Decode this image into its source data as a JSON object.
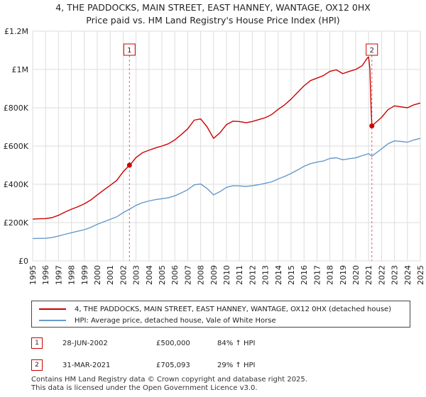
{
  "title_line1": "4, THE PADDOCKS, MAIN STREET, EAST HANNEY, WANTAGE, OX12 0HX",
  "title_line2": "Price paid vs. HM Land Registry's House Price Index (HPI)",
  "colors": {
    "property": "#cc0000",
    "hpi": "#6699cc",
    "marker": "#cc0000",
    "vline": "#e06060"
  },
  "chart_data": {
    "type": "line",
    "xlim": [
      1995,
      2025
    ],
    "ylim": [
      0,
      1200000
    ],
    "yticks": [
      {
        "value": 0,
        "label": "£0"
      },
      {
        "value": 200000,
        "label": "£200K"
      },
      {
        "value": 400000,
        "label": "£400K"
      },
      {
        "value": 600000,
        "label": "£600K"
      },
      {
        "value": 800000,
        "label": "£800K"
      },
      {
        "value": 1000000,
        "label": "£1M"
      },
      {
        "value": 1200000,
        "label": "£1.2M"
      }
    ],
    "xticks": [
      "1995",
      "1996",
      "1997",
      "1998",
      "1999",
      "2000",
      "2001",
      "2002",
      "2003",
      "2004",
      "2005",
      "2006",
      "2007",
      "2008",
      "2009",
      "2010",
      "2011",
      "2012",
      "2013",
      "2014",
      "2015",
      "2016",
      "2017",
      "2018",
      "2019",
      "2020",
      "2021",
      "2022",
      "2023",
      "2024",
      "2025"
    ],
    "series": [
      {
        "name": "4, THE PADDOCKS, MAIN STREET, EAST HANNEY, WANTAGE, OX12 0HX (detached house)",
        "color": "#cc0000",
        "points": [
          [
            1995.0,
            218000
          ],
          [
            1995.5,
            220000
          ],
          [
            1996.0,
            221000
          ],
          [
            1996.5,
            226000
          ],
          [
            1997.0,
            238000
          ],
          [
            1997.5,
            255000
          ],
          [
            1998.0,
            270000
          ],
          [
            1998.5,
            283000
          ],
          [
            1999.0,
            298000
          ],
          [
            1999.5,
            318000
          ],
          [
            2000.0,
            345000
          ],
          [
            2000.5,
            370000
          ],
          [
            2001.0,
            395000
          ],
          [
            2001.5,
            420000
          ],
          [
            2002.0,
            465000
          ],
          [
            2002.49,
            500000
          ],
          [
            2002.7,
            515000
          ],
          [
            2003.0,
            540000
          ],
          [
            2003.5,
            565000
          ],
          [
            2004.0,
            578000
          ],
          [
            2004.5,
            590000
          ],
          [
            2005.0,
            600000
          ],
          [
            2005.5,
            612000
          ],
          [
            2006.0,
            632000
          ],
          [
            2006.5,
            660000
          ],
          [
            2007.0,
            690000
          ],
          [
            2007.5,
            735000
          ],
          [
            2008.0,
            742000
          ],
          [
            2008.5,
            700000
          ],
          [
            2009.0,
            640000
          ],
          [
            2009.5,
            670000
          ],
          [
            2010.0,
            712000
          ],
          [
            2010.5,
            730000
          ],
          [
            2011.0,
            728000
          ],
          [
            2011.5,
            722000
          ],
          [
            2012.0,
            728000
          ],
          [
            2012.5,
            738000
          ],
          [
            2013.0,
            748000
          ],
          [
            2013.5,
            765000
          ],
          [
            2014.0,
            792000
          ],
          [
            2014.5,
            815000
          ],
          [
            2015.0,
            845000
          ],
          [
            2015.5,
            880000
          ],
          [
            2016.0,
            915000
          ],
          [
            2016.5,
            942000
          ],
          [
            2017.0,
            955000
          ],
          [
            2017.5,
            968000
          ],
          [
            2018.0,
            990000
          ],
          [
            2018.5,
            998000
          ],
          [
            2019.0,
            978000
          ],
          [
            2019.5,
            990000
          ],
          [
            2020.0,
            1000000
          ],
          [
            2020.5,
            1020000
          ],
          [
            2020.9,
            1060000
          ],
          [
            2021.0,
            1065000
          ],
          [
            2021.1,
            1000000
          ],
          [
            2021.2,
            780000
          ],
          [
            2021.25,
            705093
          ],
          [
            2021.5,
            720000
          ],
          [
            2022.0,
            750000
          ],
          [
            2022.5,
            790000
          ],
          [
            2023.0,
            810000
          ],
          [
            2023.5,
            805000
          ],
          [
            2024.0,
            800000
          ],
          [
            2024.5,
            815000
          ],
          [
            2025.0,
            825000
          ]
        ]
      },
      {
        "name": "HPI: Average price, detached house, Vale of White Horse",
        "color": "#6699cc",
        "points": [
          [
            1995.0,
            117000
          ],
          [
            1995.5,
            117500
          ],
          [
            1996.0,
            118000
          ],
          [
            1996.5,
            122000
          ],
          [
            1997.0,
            130000
          ],
          [
            1997.5,
            139000
          ],
          [
            1998.0,
            147000
          ],
          [
            1998.5,
            155000
          ],
          [
            1999.0,
            163000
          ],
          [
            1999.5,
            175000
          ],
          [
            2000.0,
            191000
          ],
          [
            2000.5,
            204000
          ],
          [
            2001.0,
            217000
          ],
          [
            2001.5,
            230000
          ],
          [
            2002.0,
            252000
          ],
          [
            2002.49,
            270000
          ],
          [
            2003.0,
            290000
          ],
          [
            2003.5,
            304000
          ],
          [
            2004.0,
            313000
          ],
          [
            2004.5,
            320000
          ],
          [
            2005.0,
            325000
          ],
          [
            2005.5,
            330000
          ],
          [
            2006.0,
            340000
          ],
          [
            2006.5,
            355000
          ],
          [
            2007.0,
            372000
          ],
          [
            2007.5,
            397000
          ],
          [
            2008.0,
            402000
          ],
          [
            2008.5,
            378000
          ],
          [
            2009.0,
            345000
          ],
          [
            2009.5,
            362000
          ],
          [
            2010.0,
            384000
          ],
          [
            2010.5,
            393000
          ],
          [
            2011.0,
            392000
          ],
          [
            2011.5,
            389000
          ],
          [
            2012.0,
            393000
          ],
          [
            2012.5,
            398000
          ],
          [
            2013.0,
            405000
          ],
          [
            2013.5,
            413000
          ],
          [
            2014.0,
            428000
          ],
          [
            2014.5,
            441000
          ],
          [
            2015.0,
            457000
          ],
          [
            2015.5,
            475000
          ],
          [
            2016.0,
            494000
          ],
          [
            2016.5,
            508000
          ],
          [
            2017.0,
            516000
          ],
          [
            2017.5,
            522000
          ],
          [
            2018.0,
            535000
          ],
          [
            2018.5,
            539000
          ],
          [
            2019.0,
            528000
          ],
          [
            2019.5,
            534000
          ],
          [
            2020.0,
            538000
          ],
          [
            2020.5,
            550000
          ],
          [
            2021.0,
            560000
          ],
          [
            2021.25,
            547000
          ],
          [
            2021.5,
            560000
          ],
          [
            2022.0,
            585000
          ],
          [
            2022.5,
            612000
          ],
          [
            2023.0,
            627000
          ],
          [
            2023.5,
            624000
          ],
          [
            2024.0,
            620000
          ],
          [
            2024.5,
            632000
          ],
          [
            2025.0,
            640000
          ]
        ]
      }
    ],
    "sales": [
      {
        "id": "1",
        "x": 2002.49,
        "value": 500000
      },
      {
        "id": "2",
        "x": 2021.25,
        "value": 705093
      }
    ]
  },
  "legend": {
    "property_label": "4, THE PADDOCKS, MAIN STREET, EAST HANNEY, WANTAGE, OX12 0HX (detached house)",
    "hpi_label": "HPI: Average price, detached house, Vale of White Horse"
  },
  "transactions": [
    {
      "id": "1",
      "date": "28-JUN-2002",
      "price": "£500,000",
      "hpi": "84% ↑ HPI"
    },
    {
      "id": "2",
      "date": "31-MAR-2021",
      "price": "£705,093",
      "hpi": "29% ↑ HPI"
    }
  ],
  "footer_line1": "Contains HM Land Registry data © Crown copyright and database right 2025.",
  "footer_line2": "This data is licensed under the Open Government Licence v3.0."
}
